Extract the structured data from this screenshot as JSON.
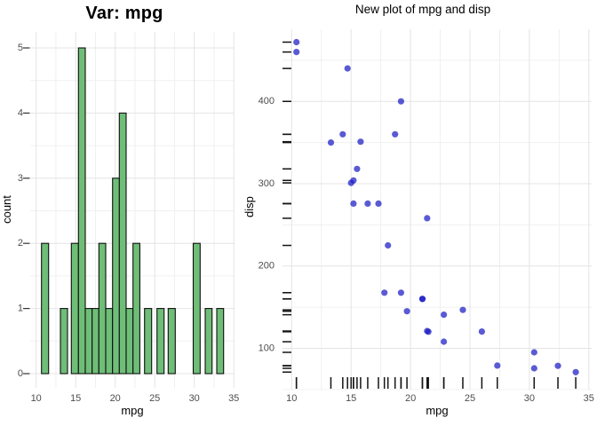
{
  "figure": {
    "background": "#ffffff",
    "text_color": "#000000",
    "tick_label_color": "#4d4d4d",
    "grid_major_color": "#e4e4e4",
    "grid_minor_color": "#f0f0f0"
  },
  "chart_data": [
    {
      "type": "bar",
      "subtype": "histogram",
      "title": "Var: mpg",
      "xlabel": "mpg",
      "ylabel": "count",
      "x_ticks": [
        10,
        15,
        20,
        25,
        30,
        35
      ],
      "y_ticks": [
        0,
        1,
        2,
        3,
        4,
        5
      ],
      "xlim": [
        9.2,
        35.1
      ],
      "ylim": [
        0,
        5.25
      ],
      "grid": true,
      "bar_fill": "#6fbe78",
      "bar_stroke": "#0f0f0f",
      "total_count": 32,
      "bins": [
        [
          10.67,
          11.57,
          2
        ],
        [
          13.07,
          13.97,
          1
        ],
        [
          14.45,
          15.35,
          2
        ],
        [
          15.35,
          16.21,
          5
        ],
        [
          16.21,
          17.08,
          1
        ],
        [
          17.08,
          17.93,
          1
        ],
        [
          17.93,
          18.8,
          2
        ],
        [
          18.8,
          19.66,
          1
        ],
        [
          19.66,
          20.52,
          3
        ],
        [
          20.52,
          21.38,
          4
        ],
        [
          21.38,
          22.25,
          1
        ],
        [
          22.25,
          23.11,
          2
        ],
        [
          23.71,
          24.61,
          1
        ],
        [
          25.28,
          26.18,
          1
        ],
        [
          26.7,
          27.6,
          1
        ],
        [
          29.87,
          30.75,
          2
        ],
        [
          31.38,
          32.25,
          1
        ],
        [
          32.84,
          33.7,
          1
        ]
      ]
    },
    {
      "type": "scatter",
      "title": "New plot of mpg and disp",
      "xlabel": "mpg",
      "ylabel": "disp",
      "x_ticks": [
        10,
        15,
        20,
        25,
        30,
        35
      ],
      "y_ticks": [
        100,
        200,
        300,
        400
      ],
      "xlim": [
        9.2,
        35.1
      ],
      "ylim": [
        50,
        490
      ],
      "grid": true,
      "point_color": "rgb(27,27,196)",
      "point_opacity": 0.72,
      "rug_sides": "bottom-left",
      "rug_color": "#141414",
      "points": [
        [
          21.0,
          160.0
        ],
        [
          21.0,
          160.0
        ],
        [
          22.8,
          108.0
        ],
        [
          21.4,
          258.0
        ],
        [
          18.7,
          360.0
        ],
        [
          18.1,
          225.0
        ],
        [
          14.3,
          360.0
        ],
        [
          24.4,
          146.7
        ],
        [
          22.8,
          140.8
        ],
        [
          19.2,
          167.6
        ],
        [
          17.8,
          167.6
        ],
        [
          16.4,
          275.8
        ],
        [
          17.3,
          275.8
        ],
        [
          15.2,
          275.8
        ],
        [
          10.4,
          472.0
        ],
        [
          10.4,
          460.0
        ],
        [
          14.7,
          440.0
        ],
        [
          32.4,
          78.7
        ],
        [
          30.4,
          75.7
        ],
        [
          33.9,
          71.1
        ],
        [
          21.5,
          120.1
        ],
        [
          15.5,
          318.0
        ],
        [
          15.2,
          304.0
        ],
        [
          13.3,
          350.0
        ],
        [
          19.2,
          400.0
        ],
        [
          27.3,
          79.0
        ],
        [
          26.0,
          120.3
        ],
        [
          30.4,
          95.1
        ],
        [
          15.8,
          351.0
        ],
        [
          19.7,
          145.0
        ],
        [
          15.0,
          301.0
        ],
        [
          21.4,
          121.0
        ]
      ]
    }
  ]
}
